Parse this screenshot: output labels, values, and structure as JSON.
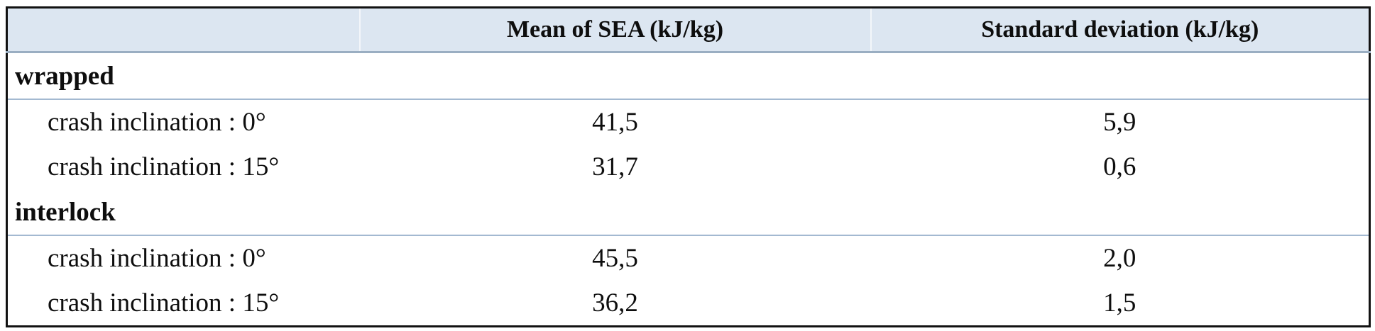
{
  "table": {
    "header": {
      "col1": "",
      "col2": "Mean of SEA (kJ/kg)",
      "col3": "Standard deviation (kJ/kg)"
    },
    "groups": [
      {
        "label": "wrapped",
        "rows": [
          {
            "label": "crash inclination : 0°",
            "mean": "41,5",
            "std": "5,9"
          },
          {
            "label": "crash inclination : 15°",
            "mean": "31,7",
            "std": "0,6"
          }
        ]
      },
      {
        "label": "interlock",
        "rows": [
          {
            "label": "crash inclination : 0°",
            "mean": "45,5",
            "std": "2,0"
          },
          {
            "label": "crash inclination : 15°",
            "mean": "36,2",
            "std": "1,5"
          }
        ]
      }
    ]
  },
  "colors": {
    "header_bg": "#dce6f1",
    "header_rule": "#9aaec2",
    "group_rule": "#a3b9d1",
    "outer_border": "#121212"
  }
}
